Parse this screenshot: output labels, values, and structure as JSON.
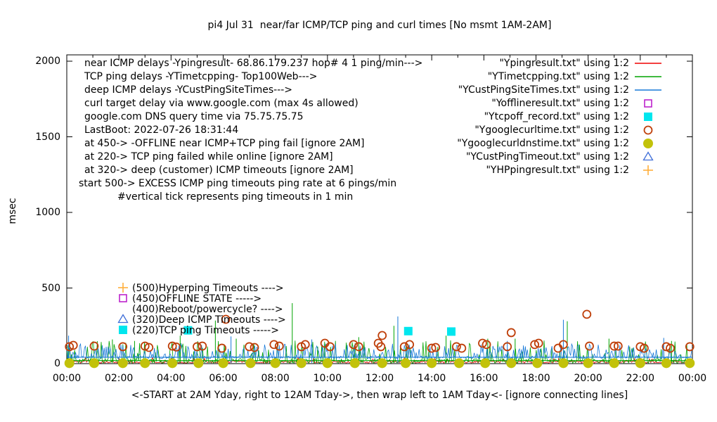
{
  "title": "pi4 Jul 31  near/far ICMP/TCP ping and curl times [No msmt 1AM-2AM]",
  "y_axis_label": "msec",
  "x_caption": "<-START at 2AM Yday, right to 12AM Tday->, then wrap left to 1AM Tday<- [ignore connecting lines]",
  "info_lines": [
    "near ICMP delays -Ypingresult- 68.86.179.237 hop# 4 1 ping/min--->",
    "TCP ping delays -YTimetcpping- Top100Web--->",
    "deep ICMP delays -YCustPingSiteTimes--->",
    "curl target delay via www.google.com (max 4s allowed)",
    "google.com DNS query time via 75.75.75.75",
    "LastBoot: 2022-07-26 18:31:44",
    "at 450-> -OFFLINE near ICMP+TCP ping fail [ignore 2AM]",
    "at 220-> TCP ping failed while online [ignore 2AM]",
    "at 320-> deep (customer) ICMP timeouts [ignore 2AM]",
    "start 500-> EXCESS ICMP ping timeouts ping rate at 6 pings/min",
    "#vertical tick represents ping timeouts in 1 min"
  ],
  "legend": [
    {
      "label": "\"Ypingresult.txt\" using 1:2",
      "sample": "line",
      "color": "#ef0000"
    },
    {
      "label": "\"YTimetcpping.txt\" using 1:2",
      "sample": "line",
      "color": "#00a400"
    },
    {
      "label": "\"YCustPingSiteTimes.txt\" using 1:2",
      "sample": "line",
      "color": "#1778d8"
    },
    {
      "label": "\"Yofflineresult.txt\" using 1:2",
      "sample": "square-open",
      "color": "#bc22cc"
    },
    {
      "label": "\"Ytcpoff_record.txt\" using 1:2",
      "sample": "square-filled",
      "color": "#00e6ee"
    },
    {
      "label": "\"Ygooglecurltime.txt\" using 1:2",
      "sample": "circle-open",
      "color": "#bf3f0a"
    },
    {
      "label": "\"Ygooglecurldnstime.txt\" using 1:2",
      "sample": "circle-filled",
      "color": "#c2c20a"
    },
    {
      "label": "\"YCustPingTimeout.txt\" using 1:2",
      "sample": "triangle-open",
      "color": "#3f6ed8"
    },
    {
      "label": "\"YHPpingresult.txt\" using 1:2",
      "sample": "plus",
      "color": "#ffaf3c"
    }
  ],
  "annotations": [
    {
      "marker": "plus",
      "color": "#ffaf3c",
      "value_msec": 500,
      "label": "(500)Hyperping Timeouts ---->"
    },
    {
      "marker": "square-open",
      "color": "#bc22cc",
      "value_msec": 450,
      "label": "(450)OFFLINE STATE ----->"
    },
    {
      "marker": "none",
      "color": "",
      "value_msec": 400,
      "label": "(400)Reboot/powercycle? ---->"
    },
    {
      "marker": "triangle-open",
      "color": "#3f6ed8",
      "value_msec": 320,
      "label": "(320)Deep ICMP Timeouts ---->"
    },
    {
      "marker": "square-filled",
      "color": "#00e6ee",
      "value_msec": 220,
      "label": "(220)TCP ping Timeouts ----->"
    }
  ],
  "chart_data": {
    "type": "line",
    "title": "pi4 Jul 31  near/far ICMP/TCP ping and curl times [No msmt 1AM-2AM]",
    "ylabel": "msec",
    "grid": false,
    "legend_position": "top-right-inside",
    "xlim_hours": [
      0,
      24
    ],
    "ylim_msec": [
      0,
      2042
    ],
    "x_tick_hours": [
      0,
      2,
      4,
      6,
      8,
      10,
      12,
      14,
      16,
      18,
      20,
      22,
      24
    ],
    "x_tick_labels": [
      "00:00",
      "02:00",
      "04:00",
      "06:00",
      "08:00",
      "10:00",
      "12:00",
      "14:00",
      "16:00",
      "18:00",
      "20:00",
      "22:00",
      "00:00"
    ],
    "y_ticks": [
      0,
      500,
      1000,
      1500,
      2000
    ],
    "y_tick_labels": [
      "0",
      "500",
      "1000",
      "1500",
      "2000"
    ],
    "line_series": [
      {
        "name": "Ypingresult near ICMP delay",
        "color": "#ef0000",
        "baseline_msec": [
          4,
          18
        ],
        "spike_rate": 0.04,
        "spike_msec": [
          25,
          45
        ],
        "flat_line_msec": null,
        "tall_spikes": []
      },
      {
        "name": "YTimetcpping TCP ping delay",
        "color": "#00a400",
        "baseline_msec": [
          3,
          33
        ],
        "spike_rate": 0.22,
        "spike_msec": [
          55,
          155
        ],
        "flat_line_msec": 20,
        "tall_spikes": [
          [
            0.05,
            120
          ],
          [
            1.75,
            160
          ],
          [
            2.6,
            150
          ],
          [
            4.35,
            185
          ],
          [
            5.7,
            285
          ],
          [
            6.5,
            165
          ],
          [
            8.65,
            400
          ],
          [
            11.2,
            175
          ],
          [
            12.55,
            250
          ],
          [
            14.55,
            185
          ],
          [
            16.15,
            165
          ],
          [
            17.2,
            165
          ],
          [
            19.2,
            280
          ],
          [
            20.8,
            165
          ],
          [
            23.2,
            150
          ]
        ]
      },
      {
        "name": "YCustPingSiteTimes deep ICMP delay",
        "color": "#1778d8",
        "baseline_msec": [
          33,
          50
        ],
        "spike_rate": 0.38,
        "spike_msec": [
          52,
          132
        ],
        "flat_line_msec": 42,
        "tall_spikes": [
          [
            0.07,
            185
          ],
          [
            6.3,
            180
          ],
          [
            9.4,
            160
          ],
          [
            12.7,
            312
          ],
          [
            16.9,
            150
          ],
          [
            19.05,
            290
          ],
          [
            22.9,
            170
          ]
        ]
      }
    ],
    "point_series": [
      {
        "name": "Yofflineresult OFFLINE state",
        "marker": "square-open",
        "color": "#bc22cc",
        "points": []
      },
      {
        "name": "Ytcpoff_record TCP ping fail",
        "marker": "square-filled",
        "color": "#00e6ee",
        "points": [
          [
            4.65,
            220
          ],
          [
            13.1,
            215
          ],
          [
            14.75,
            212
          ]
        ]
      },
      {
        "name": "Ygooglecurltime curl delay",
        "marker": "circle-open",
        "color": "#bf3f0a",
        "points": [
          [
            0.1,
            112
          ],
          [
            0.25,
            121
          ],
          [
            1.05,
            116
          ],
          [
            2.15,
            112
          ],
          [
            3.0,
            116
          ],
          [
            3.15,
            107
          ],
          [
            4.05,
            116
          ],
          [
            4.2,
            110
          ],
          [
            5.0,
            112
          ],
          [
            5.2,
            116
          ],
          [
            5.95,
            102
          ],
          [
            6.1,
            293
          ],
          [
            7.0,
            112
          ],
          [
            7.2,
            107
          ],
          [
            7.95,
            126
          ],
          [
            8.15,
            116
          ],
          [
            9.0,
            112
          ],
          [
            9.15,
            126
          ],
          [
            9.9,
            135
          ],
          [
            10.1,
            112
          ],
          [
            11.0,
            126
          ],
          [
            11.2,
            112
          ],
          [
            11.95,
            135
          ],
          [
            12.05,
            112
          ],
          [
            12.1,
            186
          ],
          [
            12.95,
            112
          ],
          [
            13.15,
            126
          ],
          [
            14.0,
            102
          ],
          [
            14.15,
            107
          ],
          [
            14.95,
            112
          ],
          [
            15.15,
            102
          ],
          [
            15.95,
            135
          ],
          [
            16.1,
            126
          ],
          [
            16.9,
            112
          ],
          [
            17.05,
            205
          ],
          [
            17.95,
            126
          ],
          [
            18.1,
            135
          ],
          [
            18.85,
            102
          ],
          [
            19.05,
            126
          ],
          [
            19.95,
            326
          ],
          [
            20.05,
            116
          ],
          [
            21.0,
            116
          ],
          [
            21.15,
            116
          ],
          [
            22.0,
            112
          ],
          [
            22.15,
            102
          ],
          [
            23.0,
            112
          ],
          [
            23.15,
            102
          ],
          [
            23.9,
            112
          ]
        ]
      },
      {
        "name": "Ygooglecurldnstime DNS query time",
        "marker": "circle-filled",
        "color": "#c2c20a",
        "points": [
          [
            0.1,
            3
          ],
          [
            1.05,
            3
          ],
          [
            2.15,
            3
          ],
          [
            3.0,
            3
          ],
          [
            4.05,
            3
          ],
          [
            5.05,
            3
          ],
          [
            6.0,
            3
          ],
          [
            7.05,
            3
          ],
          [
            8.0,
            3
          ],
          [
            9.0,
            3
          ],
          [
            10.0,
            3
          ],
          [
            11.05,
            3
          ],
          [
            12.1,
            3
          ],
          [
            13.0,
            3
          ],
          [
            14.0,
            3
          ],
          [
            15.05,
            3
          ],
          [
            16.05,
            3
          ],
          [
            17.05,
            3
          ],
          [
            18.05,
            3
          ],
          [
            19.05,
            3
          ],
          [
            20.0,
            3
          ],
          [
            21.0,
            3
          ],
          [
            22.0,
            3
          ],
          [
            23.0,
            3
          ],
          [
            23.9,
            3
          ]
        ]
      },
      {
        "name": "YCustPingTimeout deep ICMP timeout",
        "marker": "triangle-open",
        "color": "#3f6ed8",
        "points": []
      },
      {
        "name": "YHPpingresult hyperping timeout",
        "marker": "plus",
        "color": "#ffaf3c",
        "points": []
      }
    ]
  }
}
